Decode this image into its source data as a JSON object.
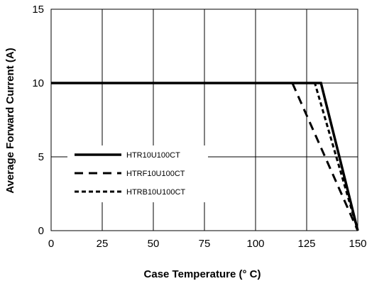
{
  "chart_data": {
    "type": "line",
    "xlabel": "Case Temperature (° C)",
    "ylabel": "Average Forward Current (A)",
    "xlim": [
      0,
      150
    ],
    "ylim": [
      0,
      15
    ],
    "xticks": [
      "0",
      "25",
      "50",
      "75",
      "100",
      "125",
      "150"
    ],
    "yticks": [
      "0",
      "5",
      "10",
      "15"
    ],
    "grid": true,
    "legend_position": "lower-left",
    "series": [
      {
        "name": "HTR10U100CT",
        "style": "solid",
        "x": [
          0,
          132,
          150
        ],
        "y": [
          10,
          10,
          0
        ]
      },
      {
        "name": "HTRF10U100CT",
        "style": "dashed",
        "x": [
          0,
          118,
          150
        ],
        "y": [
          10,
          10,
          0
        ]
      },
      {
        "name": "HTRB10U100CT",
        "style": "dotted",
        "x": [
          0,
          129,
          150
        ],
        "y": [
          10,
          10,
          0
        ]
      }
    ]
  }
}
